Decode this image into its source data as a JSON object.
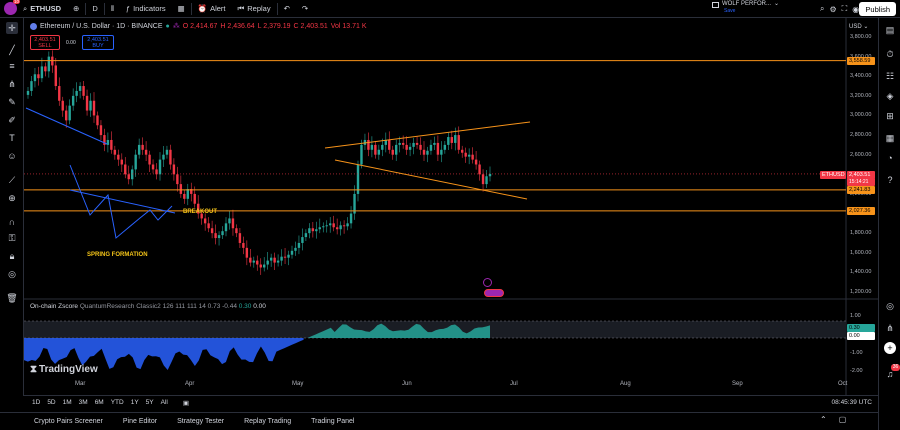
{
  "toolbar": {
    "symbol": "ETHUSD",
    "interval": "D",
    "indicators_label": "Indicators",
    "alert_label": "Alert",
    "replay_label": "Replay",
    "publish_label": "Publish",
    "avatar_badge": "10",
    "workspace_name": "WOLF PERFOR...",
    "workspace_status": "Save"
  },
  "legend": {
    "title": "Ethereum / U.S. Dollar · 1D · BINANCE",
    "open": "O 2,414.67",
    "high": "H 2,436.64",
    "low": "L 2,379.19",
    "close": "C 2,403.51",
    "vol": "Vol 13.71 K"
  },
  "order": {
    "sell_price": "2,403.51",
    "sell_label": "SELL",
    "spread": "0.00",
    "buy_price": "2,403.51",
    "buy_label": "BUY"
  },
  "price_axis": {
    "currency": "USD",
    "labels": [
      "3,800.00",
      "3,600.00",
      "3,400.00",
      "3,200.00",
      "3,000.00",
      "2,800.00",
      "2,600.00",
      "2,200.00",
      "1,800.00",
      "1,600.00",
      "1,400.00",
      "1,200.00"
    ],
    "tag_top": "3,558.59",
    "tag_symbol": "ETHUSD",
    "tag_price": "2,403.51",
    "tag_countdown": "15:14:21",
    "tag_mid": "2,241.83",
    "tag_low": "2,027.36"
  },
  "annotations": {
    "breakout": "BREAKOUT",
    "spring": "SPRING FORMATION"
  },
  "indicator": {
    "name": "On-chain Zscore",
    "author": "QuantumResearch",
    "params": "Classic2 126 111 111 14 0.73 -0.44",
    "v1": "0.30",
    "v2": "0.00",
    "axis": [
      "1.00",
      "0.30",
      "0.00",
      "-1.00",
      "-2.00"
    ]
  },
  "time_axis": [
    "Mar",
    "Apr",
    "May",
    "Jun",
    "Jul",
    "Aug",
    "Sep",
    "Oct"
  ],
  "brand": "TradingView",
  "ranges": [
    "1D",
    "5D",
    "1M",
    "3M",
    "6M",
    "YTD",
    "1Y",
    "5Y",
    "All"
  ],
  "clock": "08:45:39 UTC",
  "bottom_tabs": [
    "Crypto Pairs Screener",
    "Pine Editor",
    "Strategy Tester",
    "Replay Trading",
    "Trading Panel"
  ],
  "notif_badge": "36",
  "colors": {
    "up": "#26a69a",
    "down": "#f23645",
    "level": "#f7931a",
    "trend_blue": "#2962ff",
    "annotation": "#f5c518"
  },
  "chart_data": {
    "type": "candlestick",
    "x_range": [
      "Feb",
      "Jul"
    ],
    "y_range": [
      1200,
      3800
    ],
    "horizontal_levels": [
      3558.59,
      2241.83,
      2027.36
    ],
    "last_price": 2403.51,
    "ohlc_close_series": [
      3250,
      3350,
      3420,
      3380,
      3500,
      3450,
      3600,
      3510,
      3300,
      3150,
      3050,
      2950,
      3100,
      3200,
      3250,
      3300,
      3200,
      3050,
      3150,
      3000,
      2900,
      2800,
      2700,
      2750,
      2650,
      2600,
      2550,
      2500,
      2400,
      2350,
      2450,
      2600,
      2700,
      2650,
      2600,
      2500,
      2450,
      2400,
      2550,
      2600,
      2650,
      2500,
      2400,
      2300,
      2200,
      2150,
      2250,
      2200,
      2100,
      2000,
      1950,
      1900,
      1850,
      1800,
      1750,
      1780,
      1820,
      1900,
      1950,
      1850,
      1800,
      1700,
      1650,
      1550,
      1500,
      1520,
      1480,
      1450,
      1480,
      1520,
      1550,
      1500,
      1520,
      1560,
      1550,
      1580,
      1620,
      1650,
      1700,
      1760,
      1800,
      1850,
      1820,
      1840,
      1860,
      1870,
      1880,
      1900,
      1860,
      1840,
      1880,
      1870,
      1900,
      2000,
      2200,
      2500,
      2700,
      2750,
      2650,
      2700,
      2600,
      2650,
      2700,
      2750,
      2650,
      2600,
      2700,
      2720,
      2700,
      2650,
      2680,
      2720,
      2700,
      2650,
      2600,
      2640,
      2700,
      2720,
      2600,
      2650,
      2700,
      2780,
      2720,
      2800,
      2650,
      2620,
      2580,
      2600,
      2550,
      2500,
      2400,
      2300,
      2380,
      2404
    ]
  }
}
